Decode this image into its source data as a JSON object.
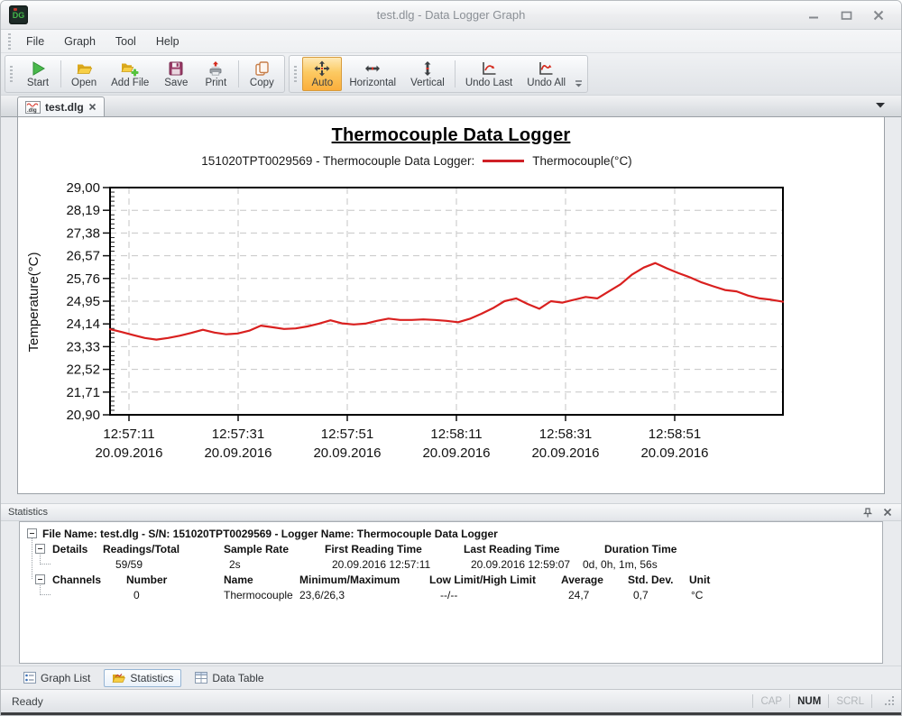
{
  "window": {
    "title": "test.dlg - Data Logger Graph",
    "app_icon_text": "DG"
  },
  "menu": {
    "items": [
      "File",
      "Graph",
      "Tool",
      "Help"
    ]
  },
  "toolbar": {
    "group1": [
      {
        "label": "Start"
      },
      {
        "label": "Open"
      },
      {
        "label": "Add File"
      },
      {
        "label": "Save"
      },
      {
        "label": "Print"
      },
      {
        "label": "Copy"
      }
    ],
    "group2": [
      {
        "label": "Auto",
        "active": true
      },
      {
        "label": "Horizontal"
      },
      {
        "label": "Vertical"
      },
      {
        "label": "Undo Last"
      },
      {
        "label": "Undo All"
      }
    ]
  },
  "tab": {
    "label": "test.dlg",
    "icon_text": ".dlg"
  },
  "chart_data": {
    "type": "line",
    "title": "Thermocouple Data Logger",
    "legend_prefix": "151020TPT0029569 - Thermocouple Data Logger:",
    "legend_series": "Thermocouple(°C)",
    "ylabel": "Temperature(°C)",
    "ylim": [
      20.9,
      29.0
    ],
    "grid": true,
    "y_ticks": [
      "29,00",
      "28,19",
      "27,38",
      "26,57",
      "25,76",
      "24,95",
      "24,14",
      "23,33",
      "22,52",
      "21,71",
      "20,90"
    ],
    "x_ticks": [
      {
        "time": "12:57:11",
        "date": "20.09.2016"
      },
      {
        "time": "12:57:31",
        "date": "20.09.2016"
      },
      {
        "time": "12:57:51",
        "date": "20.09.2016"
      },
      {
        "time": "12:58:11",
        "date": "20.09.2016"
      },
      {
        "time": "12:58:31",
        "date": "20.09.2016"
      },
      {
        "time": "12:58:51",
        "date": "20.09.2016"
      }
    ],
    "series": [
      {
        "name": "Thermocouple(°C)",
        "color": "#d9201f",
        "values": [
          23.95,
          23.85,
          23.74,
          23.64,
          23.58,
          23.64,
          23.72,
          23.82,
          23.93,
          23.83,
          23.77,
          23.8,
          23.9,
          24.08,
          24.02,
          23.96,
          23.98,
          24.05,
          24.15,
          24.27,
          24.16,
          24.12,
          24.15,
          24.25,
          24.33,
          24.28,
          24.28,
          24.3,
          24.28,
          24.25,
          24.2,
          24.32,
          24.5,
          24.7,
          24.95,
          25.05,
          24.85,
          24.68,
          24.95,
          24.9,
          25.0,
          25.1,
          25.05,
          25.3,
          25.55,
          25.9,
          26.15,
          26.31,
          26.12,
          25.95,
          25.8,
          25.62,
          25.48,
          25.35,
          25.3,
          25.15,
          25.05,
          25.0,
          24.93
        ]
      }
    ]
  },
  "statistics": {
    "panel_title": "Statistics",
    "root": "File Name: test.dlg - S/N: 151020TPT0029569 - Logger Name: Thermocouple Data Logger",
    "details": {
      "label": "Details",
      "headers": [
        "Readings/Total",
        "Sample Rate",
        "First Reading Time",
        "Last Reading Time",
        "Duration Time"
      ],
      "values": [
        "59/59",
        "2s",
        "20.09.2016 12:57:11",
        "20.09.2016 12:59:07",
        "0d, 0h, 1m, 56s"
      ]
    },
    "channels": {
      "label": "Channels",
      "headers": [
        "Number",
        "Name",
        "Minimum/Maximum",
        "Low Limit/High Limit",
        "Average",
        "Std. Dev.",
        "Unit"
      ],
      "values": [
        "0",
        "Thermocouple",
        "23,6/26,3",
        "--/--",
        "24,7",
        "0,7",
        "°C"
      ]
    }
  },
  "bottom_tabs": [
    {
      "label": "Graph List",
      "active": false
    },
    {
      "label": "Statistics",
      "active": true
    },
    {
      "label": "Data Table",
      "active": false
    }
  ],
  "status_bar": {
    "text": "Ready",
    "indicators": [
      {
        "label": "CAP",
        "active": false
      },
      {
        "label": "NUM",
        "active": true
      },
      {
        "label": "SCRL",
        "active": false
      }
    ]
  }
}
